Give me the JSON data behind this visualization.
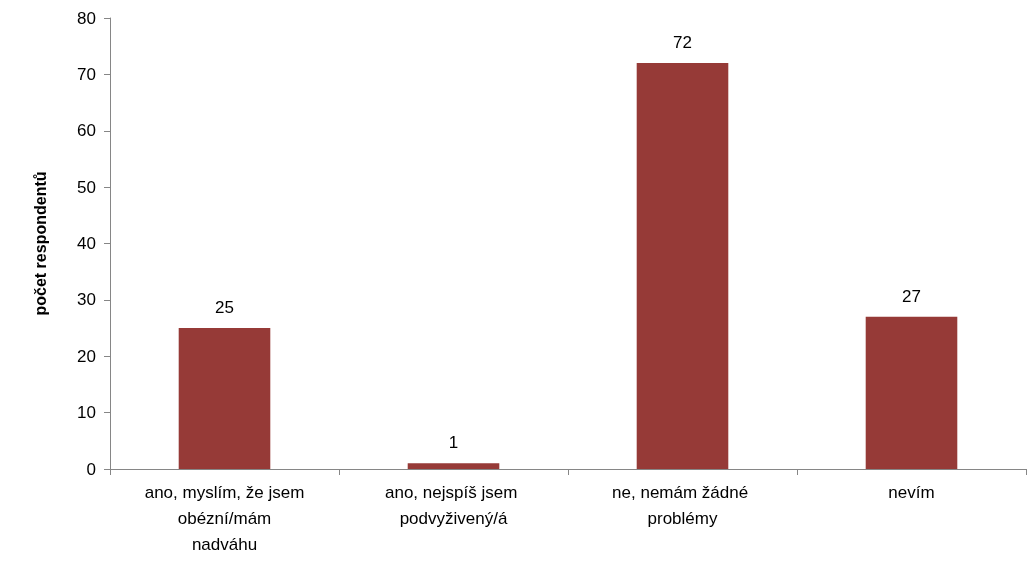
{
  "chart_data": {
    "type": "bar",
    "ylabel": "počet respondentů",
    "categories": [
      "ano, myslím, že jsem obézní/mám nadváhu",
      "ano, nejspíš jsem podvyživený/á",
      "ne, nemám žádné problémy",
      "nevím"
    ],
    "values": [
      25,
      1,
      72,
      27
    ],
    "color": "#963a37",
    "ylim": [
      0,
      80
    ],
    "yticks": [
      0,
      10,
      20,
      30,
      40,
      50,
      60,
      70,
      80
    ],
    "grid": false,
    "data_labels": true
  }
}
